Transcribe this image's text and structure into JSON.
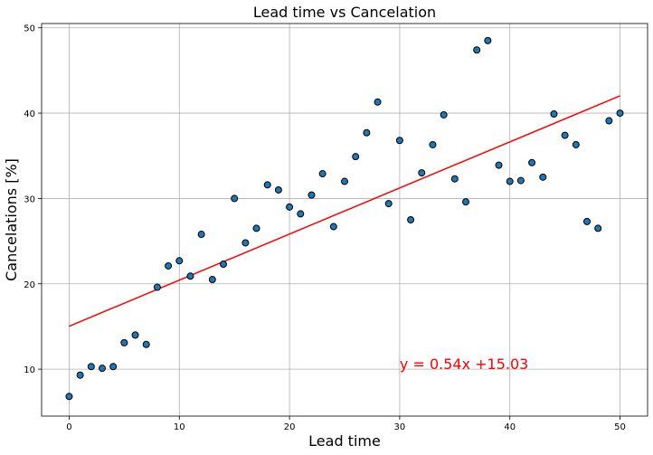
{
  "chart_data": {
    "type": "scatter",
    "title": "Lead time vs Cancelation",
    "xlabel": "Lead time",
    "ylabel": "Cancelations [%]",
    "xlim": [
      -2.5,
      52.5
    ],
    "ylim": [
      4.5,
      50.5
    ],
    "xticks": [
      0,
      10,
      20,
      30,
      40,
      50
    ],
    "yticks": [
      10,
      20,
      30,
      40,
      50
    ],
    "grid": true,
    "x": [
      0,
      1,
      2,
      3,
      4,
      5,
      6,
      7,
      8,
      9,
      10,
      11,
      12,
      13,
      14,
      15,
      16,
      17,
      18,
      19,
      20,
      21,
      22,
      23,
      24,
      25,
      26,
      27,
      28,
      29,
      30,
      31,
      32,
      33,
      34,
      35,
      36,
      37,
      38,
      39,
      40,
      41,
      42,
      43,
      44,
      45,
      46,
      47,
      48,
      49,
      50
    ],
    "y": [
      6.8,
      9.3,
      10.3,
      10.1,
      10.3,
      13.1,
      14.0,
      12.9,
      19.6,
      22.1,
      22.7,
      20.9,
      25.8,
      20.5,
      22.3,
      30.0,
      24.8,
      26.5,
      31.6,
      31.0,
      29.0,
      28.2,
      30.4,
      32.9,
      26.7,
      32.0,
      34.9,
      37.7,
      41.3,
      29.4,
      36.8,
      27.5,
      33.0,
      36.3,
      39.8,
      32.3,
      29.6,
      47.4,
      48.5,
      33.9,
      32.0,
      32.1,
      34.2,
      32.5,
      39.9,
      37.4,
      36.3,
      27.3,
      26.5,
      39.1,
      40.0
    ],
    "marker_color": "#1f77b4",
    "regression": {
      "slope": 0.54,
      "intercept": 15.03,
      "x_range": [
        0,
        50
      ],
      "color": "#ff0000"
    },
    "annotation": {
      "text": "y = 0.54x +15.03",
      "x": 30,
      "y": 10,
      "color": "#ff0000"
    }
  }
}
